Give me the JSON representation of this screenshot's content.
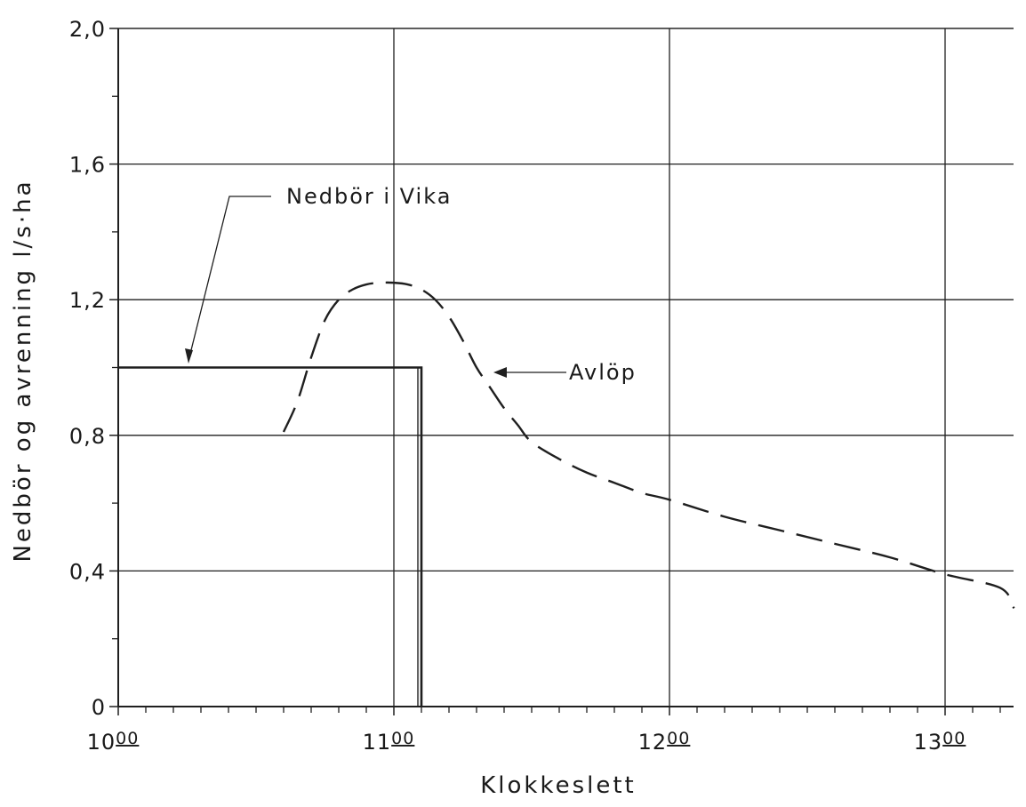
{
  "chart_data": {
    "type": "line",
    "xlabel": "Klokkeslett",
    "ylabel": "Nedbör og avrenning l/s·ha",
    "xlim": [
      10.0,
      13.25
    ],
    "ylim": [
      0,
      2.0
    ],
    "grid": true,
    "x_ticks": [
      {
        "value": 10,
        "hour": "10",
        "min": "00"
      },
      {
        "value": 11,
        "hour": "11",
        "min": "00"
      },
      {
        "value": 12,
        "hour": "12",
        "min": "00"
      },
      {
        "value": 13,
        "hour": "13",
        "min": "00"
      }
    ],
    "y_ticks": [
      {
        "value": 0,
        "label": "0"
      },
      {
        "value": 0.4,
        "label": "0,4"
      },
      {
        "value": 0.8,
        "label": "0,8"
      },
      {
        "value": 1.2,
        "label": "1,2"
      },
      {
        "value": 1.6,
        "label": "1,6"
      },
      {
        "value": 2.0,
        "label": "2,0"
      }
    ],
    "series": [
      {
        "name": "Nedbör i Vika",
        "style": "solid",
        "x": [
          10.0,
          11.1,
          11.1
        ],
        "y": [
          1.0,
          1.0,
          0.0
        ]
      },
      {
        "name": "Avlöp",
        "style": "dashed",
        "x": [
          10.6,
          10.65,
          10.7,
          10.75,
          10.8,
          10.85,
          10.9,
          10.95,
          11.0,
          11.05,
          11.1,
          11.15,
          11.2,
          11.25,
          11.3,
          11.35,
          11.4,
          11.45,
          11.5,
          11.6,
          11.7,
          11.8,
          11.9,
          12.0,
          12.2,
          12.4,
          12.6,
          12.8,
          13.0,
          13.2,
          13.25
        ],
        "y": [
          0.81,
          0.9,
          1.03,
          1.14,
          1.2,
          1.23,
          1.245,
          1.25,
          1.25,
          1.245,
          1.23,
          1.2,
          1.15,
          1.08,
          1.0,
          0.94,
          0.88,
          0.83,
          0.78,
          0.73,
          0.69,
          0.66,
          0.63,
          0.61,
          0.56,
          0.52,
          0.48,
          0.44,
          0.39,
          0.35,
          0.29
        ]
      }
    ],
    "annotations": [
      {
        "text": "Nedbör i Vika",
        "target_series": "Nedbör i Vika"
      },
      {
        "text": "Avlöp",
        "target_series": "Avlöp"
      }
    ]
  }
}
